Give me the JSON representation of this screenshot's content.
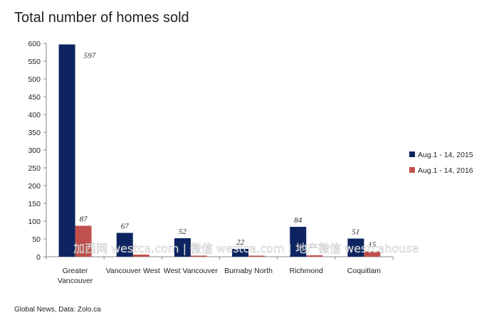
{
  "chart_data": {
    "type": "bar",
    "title": "Total number of homes sold",
    "categories": [
      [
        "Greater",
        "Vancouver"
      ],
      [
        "Vancouver West"
      ],
      [
        "West Vancouver"
      ],
      [
        "Burnaby North"
      ],
      [
        "Richmond"
      ],
      [
        "Coquitlam"
      ]
    ],
    "series": [
      {
        "name": "Aug.1 - 14, 2015",
        "values": [
          597,
          67,
          52,
          22,
          84,
          51
        ],
        "labels": [
          "597",
          "67",
          "52",
          "22",
          "84",
          "51"
        ]
      },
      {
        "name": "Aug.1 - 14, 2016",
        "values": [
          87,
          6,
          3,
          3,
          4,
          15
        ],
        "labels": [
          "87",
          "",
          "",
          "",
          "",
          "15"
        ]
      }
    ],
    "ylim": [
      0,
      600
    ],
    "yticks": [
      0,
      50,
      100,
      150,
      200,
      250,
      300,
      350,
      400,
      450,
      500,
      550,
      600
    ],
    "grid": false,
    "legend_position": "right"
  },
  "colors": {
    "series_2015": "#0d2461",
    "series_2016": "#c0504d",
    "axis": "#888888"
  },
  "source": "Global News, Data: Zolo.ca",
  "watermark": "加西网 westca.com | 微信 westca.com | 地产微信 westcahouse"
}
